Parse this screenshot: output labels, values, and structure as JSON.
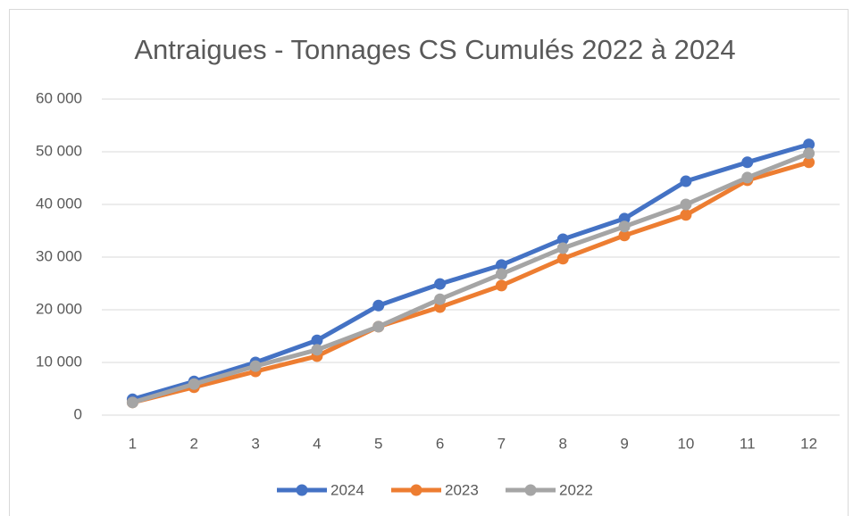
{
  "chart_data": {
    "type": "line",
    "title": "Antraigues - Tonnages CS Cumulés 2022 à 2024",
    "categories": [
      "1",
      "2",
      "3",
      "4",
      "5",
      "6",
      "7",
      "8",
      "9",
      "10",
      "11",
      "12"
    ],
    "series": [
      {
        "name": "2024",
        "color": "#4472c4",
        "values": [
          3000,
          6400,
          10000,
          14200,
          20800,
          24900,
          28500,
          33400,
          37300,
          44400,
          48000,
          51400
        ]
      },
      {
        "name": "2023",
        "color": "#ed7d31",
        "values": [
          2400,
          5300,
          8300,
          11200,
          16800,
          20500,
          24600,
          29700,
          34100,
          38000,
          44600,
          48000
        ]
      },
      {
        "name": "2022",
        "color": "#a5a5a5",
        "values": [
          2400,
          5900,
          9300,
          12400,
          16800,
          22000,
          26800,
          31700,
          35800,
          40000,
          45100,
          49700
        ]
      }
    ],
    "ylim": [
      0,
      60000
    ],
    "yticks": [
      0,
      {
        "value": 10000,
        "label": "10 000"
      },
      {
        "value": 20000,
        "label": "20 000"
      },
      {
        "value": 30000,
        "label": "30 000"
      },
      {
        "value": 40000,
        "label": "40 000"
      },
      {
        "value": 50000,
        "label": "50 000"
      },
      {
        "value": 60000,
        "label": "60 000"
      }
    ],
    "grid": true,
    "legend": "bottom"
  }
}
